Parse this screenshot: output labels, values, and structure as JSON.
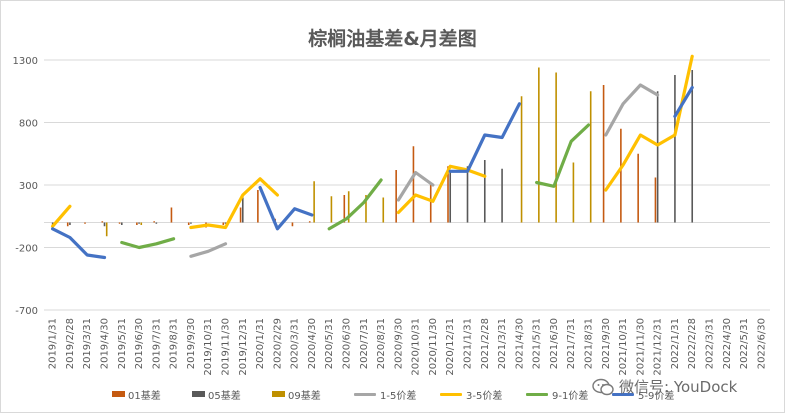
{
  "chart_data": {
    "type": "bar+line",
    "title": "棕榈油基差&月差图",
    "y_ticks": [
      "-700",
      "-200",
      "300",
      "800",
      "1300"
    ],
    "ylim": [
      -700,
      1300
    ],
    "grid": true,
    "legend_position": "bottom",
    "categories": [
      "2019/1/31",
      "2019/2/28",
      "2019/3/31",
      "2019/4/30",
      "2019/5/31",
      "2019/6/30",
      "2019/7/31",
      "2019/8/31",
      "2019/9/30",
      "2019/10/31",
      "2019/11/30",
      "2019/12/31",
      "2020/1/31",
      "2020/2/29",
      "2020/3/31",
      "2020/4/30",
      "2020/5/31",
      "2020/6/30",
      "2020/7/31",
      "2020/8/31",
      "2020/9/30",
      "2020/10/31",
      "2020/11/30",
      "2020/12/31",
      "2021/1/31",
      "2021/2/28",
      "2021/3/31",
      "2021/4/30",
      "2021/5/31",
      "2021/6/30",
      "2021/7/31",
      "2021/8/31",
      "2021/9/30",
      "2021/10/31",
      "2021/11/30",
      "2021/12/31",
      "2022/1/31",
      "2022/2/28",
      "2022/3/31",
      "2022/4/30",
      "2022/5/31",
      "2022/6/30"
    ],
    "series": [
      {
        "name": "01基差",
        "kind": "bar",
        "color": "#c55a11",
        "values": [
          null,
          -30,
          -10,
          10,
          -10,
          -20,
          10,
          120,
          -20,
          -40,
          -20,
          120,
          260,
          30,
          -30,
          10,
          null,
          220,
          null,
          null,
          420,
          610,
          320,
          450,
          null,
          null,
          null,
          null,
          null,
          null,
          null,
          null,
          1100,
          750,
          550,
          360,
          null,
          null,
          null,
          null,
          null,
          null
        ]
      },
      {
        "name": "05基差",
        "kind": "bar",
        "color": "#595959",
        "values": [
          -30,
          -20,
          null,
          -30,
          -20,
          -10,
          -10,
          null,
          -10,
          null,
          -10,
          200,
          null,
          null,
          null,
          null,
          null,
          null,
          null,
          null,
          null,
          null,
          null,
          420,
          450,
          500,
          430,
          null,
          null,
          null,
          null,
          null,
          null,
          null,
          null,
          1050,
          1180,
          1220,
          null,
          null,
          null,
          null
        ]
      },
      {
        "name": "09基差",
        "kind": "bar",
        "color": "#bf9000",
        "values": [
          null,
          null,
          null,
          -110,
          null,
          -20,
          null,
          null,
          null,
          null,
          null,
          null,
          null,
          null,
          null,
          330,
          210,
          250,
          220,
          200,
          null,
          null,
          null,
          null,
          null,
          null,
          null,
          1010,
          1240,
          1200,
          480,
          1050,
          null,
          null,
          null,
          null,
          null,
          null,
          null,
          null,
          null,
          null
        ]
      },
      {
        "name": "1-5价差",
        "kind": "line",
        "color": "#a6a6a6",
        "values": [
          null,
          null,
          null,
          null,
          null,
          null,
          null,
          null,
          -270,
          -230,
          -170,
          null,
          null,
          null,
          null,
          null,
          null,
          null,
          null,
          null,
          180,
          400,
          300,
          null,
          null,
          null,
          null,
          null,
          null,
          null,
          null,
          null,
          700,
          950,
          1100,
          1020,
          null,
          null,
          null,
          null,
          null,
          null
        ]
      },
      {
        "name": "3-5价差",
        "kind": "line",
        "color": "#ffc000",
        "values": [
          -30,
          130,
          null,
          null,
          null,
          null,
          null,
          null,
          -40,
          -20,
          -40,
          220,
          350,
          220,
          null,
          null,
          null,
          null,
          null,
          null,
          80,
          220,
          170,
          450,
          420,
          370,
          null,
          null,
          null,
          null,
          null,
          null,
          260,
          460,
          700,
          620,
          700,
          1330,
          null,
          null,
          null,
          null
        ]
      },
      {
        "name": "9-1价差",
        "kind": "line",
        "color": "#70ad47",
        "values": [
          null,
          null,
          null,
          null,
          -160,
          -200,
          -170,
          -130,
          null,
          null,
          null,
          null,
          null,
          null,
          null,
          null,
          -50,
          30,
          160,
          340,
          null,
          null,
          null,
          null,
          null,
          null,
          null,
          null,
          320,
          290,
          650,
          780,
          null,
          null,
          null,
          null,
          null,
          null,
          null,
          null,
          null,
          null
        ]
      },
      {
        "name": "5-9价差",
        "kind": "line",
        "color": "#4472c4",
        "values": [
          -50,
          -120,
          -260,
          -280,
          null,
          null,
          null,
          null,
          null,
          null,
          null,
          null,
          280,
          -50,
          110,
          60,
          null,
          null,
          null,
          null,
          null,
          null,
          null,
          410,
          410,
          700,
          680,
          950,
          null,
          null,
          null,
          null,
          null,
          null,
          null,
          null,
          850,
          1080,
          null,
          null,
          null,
          null
        ]
      }
    ]
  },
  "watermark": {
    "text": "微信号: YouDock",
    "icon": "wechat-icon"
  }
}
